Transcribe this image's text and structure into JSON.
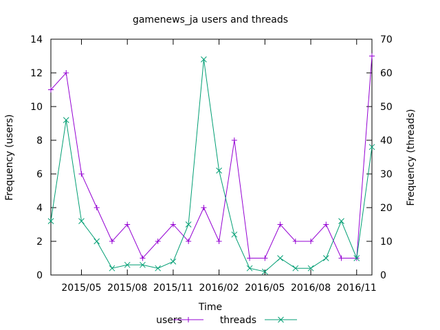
{
  "chart_data": {
    "type": "line",
    "title": "gamenews_ja users and threads",
    "xlabel": "Time",
    "ylabel": "Frequency (users)",
    "y2label": "Frequency (threads)",
    "x": [
      "2015-03",
      "2015-04",
      "2015-05",
      "2015-06",
      "2015-07",
      "2015-08",
      "2015-09",
      "2015-10",
      "2015-11",
      "2015-12",
      "2016-01",
      "2016-02",
      "2016-03",
      "2016-04",
      "2016-05",
      "2016-06",
      "2016-07",
      "2016-08",
      "2016-09",
      "2016-10",
      "2016-11",
      "2016-12"
    ],
    "xticks": [
      {
        "date": "2015-05",
        "label": "2015/05"
      },
      {
        "date": "2015-08",
        "label": "2015/08"
      },
      {
        "date": "2015-11",
        "label": "2015/11"
      },
      {
        "date": "2016-02",
        "label": "2016/02"
      },
      {
        "date": "2016-05",
        "label": "2016/05"
      },
      {
        "date": "2016-08",
        "label": "2016/08"
      },
      {
        "date": "2016-11",
        "label": "2016/11"
      }
    ],
    "xlim": [
      "2015-03",
      "2016-12"
    ],
    "ylim": [
      0,
      14
    ],
    "yticks": [
      "0",
      "2",
      "4",
      "6",
      "8",
      "10",
      "12",
      "14"
    ],
    "y2lim": [
      0,
      70
    ],
    "y2ticks": [
      "0",
      "10",
      "20",
      "30",
      "40",
      "50",
      "60",
      "70"
    ],
    "grid": false,
    "legend": "bottom",
    "series": [
      {
        "name": "users",
        "axis": "y",
        "color": "#9400d3",
        "marker": "plus",
        "values": [
          11,
          12,
          6,
          4,
          2,
          3,
          1,
          2,
          3,
          2,
          4,
          2,
          8,
          1,
          1,
          3,
          2,
          2,
          3,
          1,
          1,
          13
        ]
      },
      {
        "name": "threads",
        "axis": "y2",
        "color": "#009e73",
        "marker": "cross",
        "values": [
          16,
          46,
          16,
          10,
          2,
          3,
          3,
          2,
          4,
          15,
          64,
          31,
          12,
          2,
          1,
          5,
          2,
          2,
          5,
          16,
          5,
          38
        ]
      }
    ]
  }
}
